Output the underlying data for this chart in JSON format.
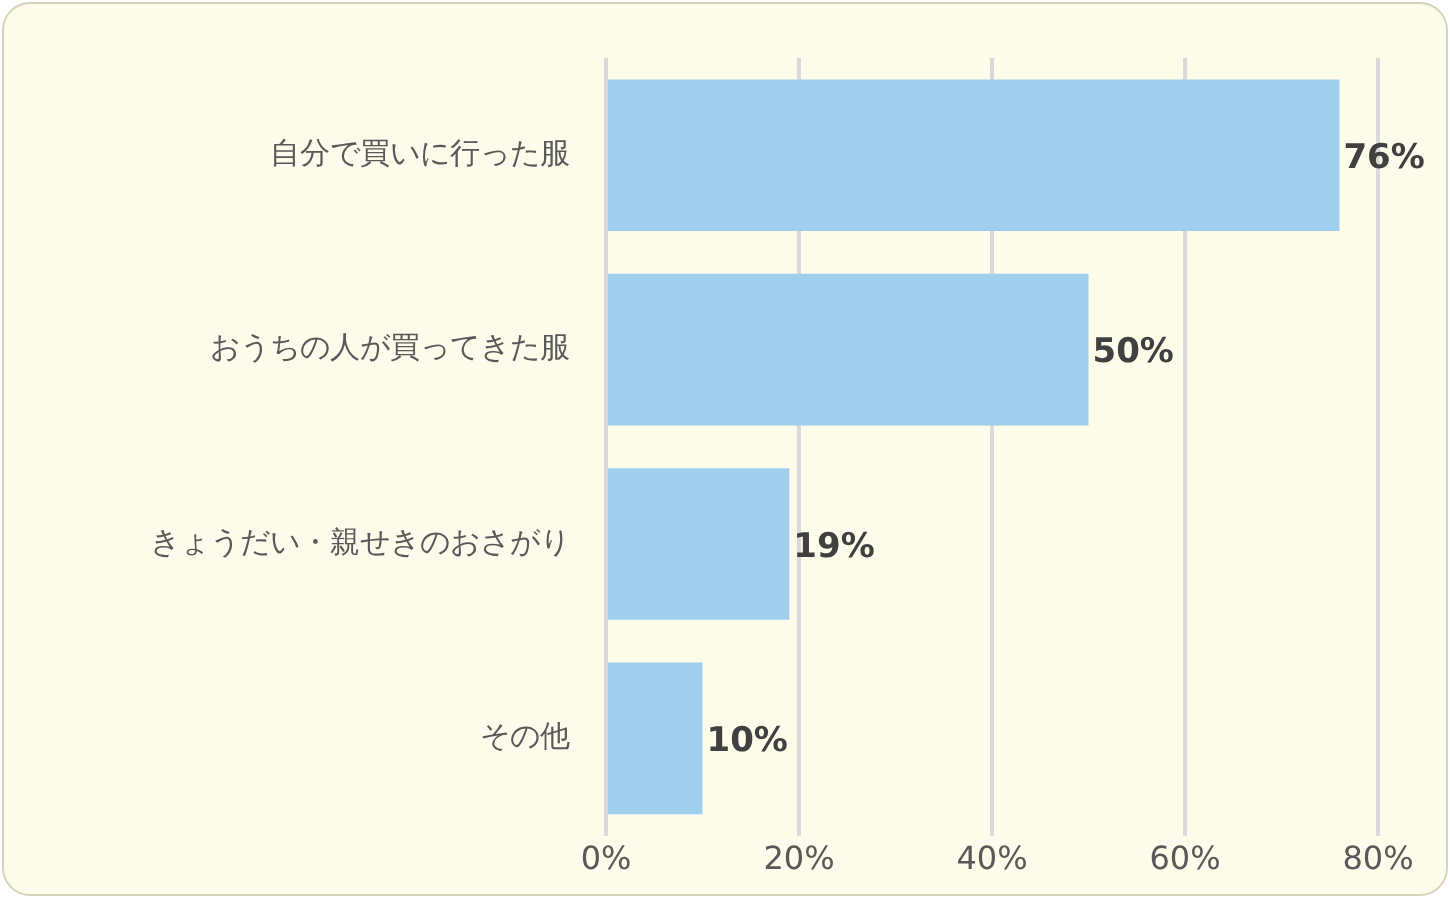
{
  "chart_data": {
    "type": "bar",
    "orientation": "horizontal",
    "categories": [
      "自分で買いに行った服",
      "おうちの人が買ってきた服",
      "きょうだい・親せきのおさがり",
      "その他"
    ],
    "values": [
      76,
      50,
      19,
      10
    ],
    "value_labels": [
      "76%",
      "50%",
      "19%",
      "10%"
    ],
    "color": "#a0cfee",
    "xlim": [
      0,
      80
    ],
    "xticks": [
      {
        "value": 0,
        "label": "0%"
      },
      {
        "value": 20,
        "label": "20%"
      },
      {
        "value": 40,
        "label": "40%"
      },
      {
        "value": 60,
        "label": "60%"
      },
      {
        "value": 80,
        "label": "80%"
      }
    ],
    "grid": "x"
  }
}
